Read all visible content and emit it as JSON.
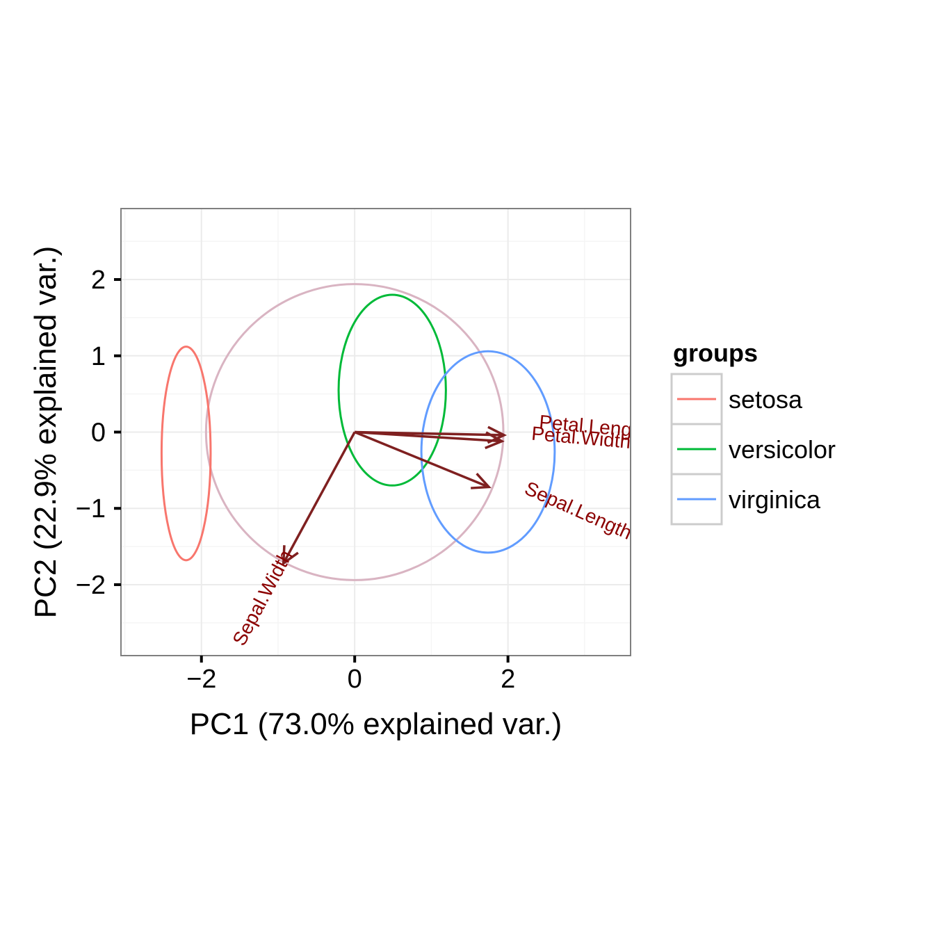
{
  "chart_data": {
    "type": "scatter",
    "subtype": "pca-biplot",
    "title": "",
    "xlabel": "PC1 (73.0% explained var.)",
    "ylabel": "PC2 (22.9% explained var.)",
    "xlim": [
      -3.05,
      3.6
    ],
    "ylim": [
      -2.93,
      2.93
    ],
    "x_ticks": [
      -2,
      0,
      2
    ],
    "x_tick_labels": [
      "−2",
      "0",
      "2"
    ],
    "y_ticks": [
      -2,
      -1,
      0,
      1,
      2
    ],
    "y_tick_labels": [
      "−2",
      "−1",
      "0",
      "1",
      "2"
    ],
    "grid": true,
    "legend": {
      "title": "groups",
      "placement": "right",
      "entries": [
        {
          "label": "setosa",
          "color": "#f8766d"
        },
        {
          "label": "versicolor",
          "color": "#00ba38"
        },
        {
          "label": "virginica",
          "color": "#619cff"
        }
      ]
    },
    "ellipses": [
      {
        "group": "setosa",
        "cx": -2.2,
        "cy": -0.28,
        "rx": 0.32,
        "ry": 1.4,
        "color": "#f8766d"
      },
      {
        "group": "versicolor",
        "cx": 0.49,
        "cy": 0.55,
        "rx": 0.7,
        "ry": 1.25,
        "color": "#00ba38"
      },
      {
        "group": "virginica",
        "cx": 1.74,
        "cy": -0.26,
        "rx": 0.87,
        "ry": 1.32,
        "color": "#619cff"
      }
    ],
    "correlation_circle": {
      "cx": 0,
      "cy": 0,
      "r": 1.94,
      "color": "#d9b4c2"
    },
    "arrow_color": "#7f2020",
    "loadings": [
      {
        "name": "Petal.Length",
        "x": 1.95,
        "y": -0.04,
        "label_x": 2.4,
        "label_y": 0.05,
        "label_angle": 5
      },
      {
        "name": "Petal.Width",
        "x": 1.92,
        "y": -0.12,
        "label_x": 2.3,
        "label_y": -0.1,
        "label_angle": 5
      },
      {
        "name": "Sepal.Length",
        "x": 1.75,
        "y": -0.72,
        "label_x": 2.2,
        "label_y": -0.8,
        "label_angle": 24
      },
      {
        "name": "Sepal.Width",
        "x": -0.93,
        "y": -1.72,
        "label_x": -1.45,
        "label_y": -2.82,
        "label_angle": -62
      }
    ]
  }
}
